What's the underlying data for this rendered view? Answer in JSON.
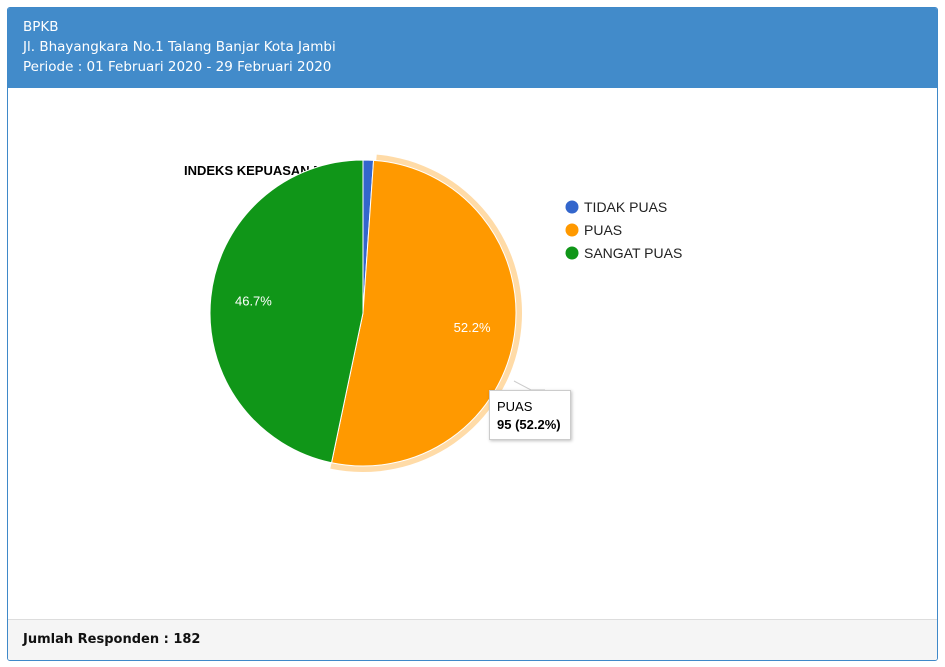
{
  "header": {
    "org": "BPKB",
    "address": "Jl. Bhayangkara No.1 Talang Banjar Kota Jambi",
    "period": "Periode : 01 Februari 2020 - 29 Februari 2020"
  },
  "footer": {
    "respondents": "Jumlah Responden : 182"
  },
  "chart_data": {
    "type": "pie",
    "title": "INDEKS KEPUASAN MASYARAKAT",
    "legend_position": "right",
    "slices": [
      {
        "label": "TIDAK PUAS",
        "value": 2,
        "percent_label": "",
        "color": "#3366cc"
      },
      {
        "label": "PUAS",
        "value": 95,
        "percent_label": "52.2%",
        "color": "#ff9900"
      },
      {
        "label": "SANGAT PUAS",
        "value": 85,
        "percent_label": "46.7%",
        "color": "#109618"
      }
    ],
    "highlighted": "PUAS",
    "tooltip": {
      "label": "PUAS",
      "value": "95 (52.2%)"
    }
  }
}
